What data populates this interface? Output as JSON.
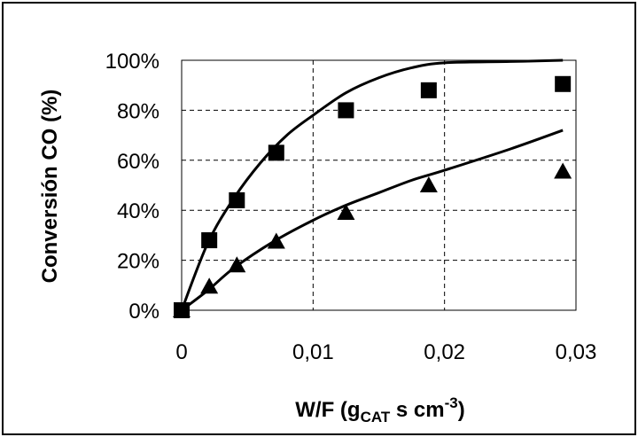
{
  "chart_data": {
    "type": "scatter",
    "xlabel": {
      "pre": "W/F (g",
      "sub": "CAT",
      "mid": " s cm",
      "sup": "-3",
      "post": ")"
    },
    "ylabel": "Conversión CO (%)",
    "xlim": [
      0,
      0.03
    ],
    "ylim": [
      0,
      100
    ],
    "x_ticks": [
      0,
      0.01,
      0.02,
      0.03
    ],
    "x_tick_labels": [
      "0",
      "0,01",
      "0,02",
      "0,03"
    ],
    "y_ticks": [
      0,
      20,
      40,
      60,
      80,
      100
    ],
    "y_tick_labels": [
      "0%",
      "20%",
      "40%",
      "60%",
      "80%",
      "100%"
    ],
    "grid": true,
    "legend": "none",
    "series": [
      {
        "marker": "square",
        "points": [
          [
            0,
            0
          ],
          [
            0.0021,
            28
          ],
          [
            0.0042,
            44
          ],
          [
            0.0072,
            63
          ],
          [
            0.0125,
            80
          ],
          [
            0.0188,
            88
          ],
          [
            0.029,
            90.5
          ]
        ]
      },
      {
        "marker": "triangle",
        "points": [
          [
            0,
            0
          ],
          [
            0.0021,
            9.5
          ],
          [
            0.0042,
            18
          ],
          [
            0.0072,
            27.5
          ],
          [
            0.0125,
            39
          ],
          [
            0.0188,
            50
          ],
          [
            0.029,
            55.5
          ]
        ]
      }
    ],
    "fit_curves": [
      {
        "points": [
          [
            0,
            0
          ],
          [
            0.002,
            27
          ],
          [
            0.004,
            45
          ],
          [
            0.006,
            59
          ],
          [
            0.008,
            70
          ],
          [
            0.01,
            78
          ],
          [
            0.0125,
            87
          ],
          [
            0.015,
            93
          ],
          [
            0.0175,
            97
          ],
          [
            0.02,
            99
          ],
          [
            0.025,
            99.5
          ],
          [
            0.029,
            100
          ]
        ]
      },
      {
        "points": [
          [
            0,
            0
          ],
          [
            0.002,
            8
          ],
          [
            0.004,
            17
          ],
          [
            0.007,
            27.5
          ],
          [
            0.01,
            36
          ],
          [
            0.0125,
            42
          ],
          [
            0.015,
            47
          ],
          [
            0.0175,
            52
          ],
          [
            0.02,
            56
          ],
          [
            0.025,
            64.5
          ],
          [
            0.029,
            72
          ]
        ]
      }
    ],
    "colors": {
      "ink": "#000000",
      "background": "#ffffff"
    }
  }
}
